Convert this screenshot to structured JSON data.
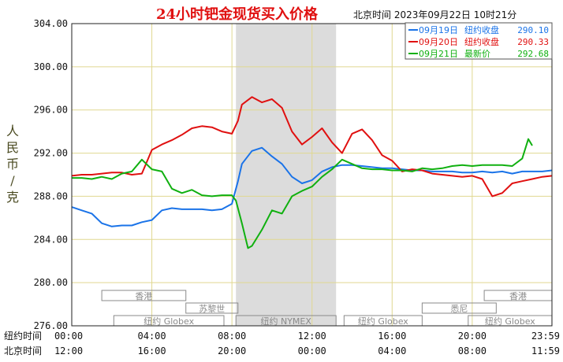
{
  "chart_data": {
    "type": "line",
    "title": "24小时钯金现货买入价格",
    "subtitle": "北京时间 2023年09月22日 10时21分",
    "ylabel": "人民币/克",
    "ylim": [
      276,
      304
    ],
    "yticks": [
      "276.00",
      "280.00",
      "284.00",
      "288.00",
      "292.00",
      "296.00",
      "300.00",
      "304.00"
    ],
    "x_hours": [
      0,
      4,
      8,
      12,
      16,
      20,
      23.983
    ],
    "x_row_ny_label": "纽约时间",
    "x_row_ny_ticks": [
      "00:00",
      "04:00",
      "08:00",
      "12:00",
      "16:00",
      "20:00",
      "23:59"
    ],
    "x_row_bj_label": "北京时间",
    "x_row_bj_ticks": [
      "12:00",
      "16:00",
      "20:00",
      "00:00",
      "04:00",
      "08:00",
      "11:59"
    ],
    "highlight_band_hours": [
      8.2,
      13.2
    ],
    "grid": true,
    "legend_position": "top-right",
    "series": [
      {
        "name": "09月19日 纽约收盘 290.10",
        "legend_date": "09月19日",
        "legend_text": "纽约收盘",
        "legend_value": "290.10",
        "color": "#1a73e8",
        "points": [
          [
            0,
            287.0
          ],
          [
            0.5,
            286.7
          ],
          [
            1.0,
            286.4
          ],
          [
            1.5,
            285.5
          ],
          [
            2.0,
            285.2
          ],
          [
            2.5,
            285.3
          ],
          [
            3.0,
            285.3
          ],
          [
            3.5,
            285.6
          ],
          [
            4.0,
            285.8
          ],
          [
            4.5,
            286.7
          ],
          [
            5.0,
            286.9
          ],
          [
            5.5,
            286.8
          ],
          [
            6.0,
            286.8
          ],
          [
            6.5,
            286.8
          ],
          [
            7.0,
            286.7
          ],
          [
            7.5,
            286.8
          ],
          [
            8.0,
            287.3
          ],
          [
            8.3,
            289.4
          ],
          [
            8.5,
            291.0
          ],
          [
            9.0,
            292.2
          ],
          [
            9.5,
            292.5
          ],
          [
            10.0,
            291.7
          ],
          [
            10.5,
            291.0
          ],
          [
            11.0,
            289.8
          ],
          [
            11.5,
            289.2
          ],
          [
            12.0,
            289.5
          ],
          [
            12.5,
            290.3
          ],
          [
            13.0,
            290.7
          ],
          [
            13.5,
            290.9
          ],
          [
            14.0,
            290.9
          ],
          [
            14.5,
            290.8
          ],
          [
            15.0,
            290.7
          ],
          [
            15.5,
            290.6
          ],
          [
            16.0,
            290.6
          ],
          [
            16.5,
            290.5
          ],
          [
            17.0,
            290.4
          ],
          [
            17.5,
            290.4
          ],
          [
            18.0,
            290.3
          ],
          [
            18.5,
            290.3
          ],
          [
            19.0,
            290.3
          ],
          [
            19.5,
            290.2
          ],
          [
            20.0,
            290.2
          ],
          [
            20.5,
            290.3
          ],
          [
            21.0,
            290.2
          ],
          [
            21.5,
            290.3
          ],
          [
            22.0,
            290.1
          ],
          [
            22.5,
            290.3
          ],
          [
            23.0,
            290.3
          ],
          [
            23.5,
            290.3
          ],
          [
            23.98,
            290.4
          ]
        ]
      },
      {
        "name": "09月20日 纽约收盘 290.33",
        "legend_date": "09月20日",
        "legend_text": "纽约收盘",
        "legend_value": "290.33",
        "color": "#e01010",
        "points": [
          [
            0,
            289.9
          ],
          [
            0.5,
            290.0
          ],
          [
            1.0,
            290.0
          ],
          [
            1.5,
            290.1
          ],
          [
            2.0,
            290.2
          ],
          [
            2.5,
            290.2
          ],
          [
            3.0,
            290.0
          ],
          [
            3.5,
            290.1
          ],
          [
            4.0,
            292.3
          ],
          [
            4.5,
            292.8
          ],
          [
            5.0,
            293.2
          ],
          [
            5.5,
            293.7
          ],
          [
            6.0,
            294.3
          ],
          [
            6.5,
            294.5
          ],
          [
            7.0,
            294.4
          ],
          [
            7.5,
            294.0
          ],
          [
            8.0,
            293.8
          ],
          [
            8.3,
            295.0
          ],
          [
            8.5,
            296.5
          ],
          [
            9.0,
            297.2
          ],
          [
            9.5,
            296.7
          ],
          [
            10.0,
            297.0
          ],
          [
            10.5,
            296.2
          ],
          [
            11.0,
            294.0
          ],
          [
            11.5,
            292.8
          ],
          [
            12.0,
            293.5
          ],
          [
            12.5,
            294.3
          ],
          [
            13.0,
            293.0
          ],
          [
            13.5,
            292.0
          ],
          [
            14.0,
            293.8
          ],
          [
            14.5,
            294.2
          ],
          [
            15.0,
            293.2
          ],
          [
            15.5,
            291.8
          ],
          [
            16.0,
            291.3
          ],
          [
            16.5,
            290.3
          ],
          [
            17.0,
            290.5
          ],
          [
            17.5,
            290.4
          ],
          [
            18.0,
            290.1
          ],
          [
            18.5,
            290.0
          ],
          [
            19.0,
            289.9
          ],
          [
            19.5,
            289.8
          ],
          [
            20.0,
            289.9
          ],
          [
            20.5,
            289.6
          ],
          [
            21.0,
            288.0
          ],
          [
            21.5,
            288.3
          ],
          [
            22.0,
            289.2
          ],
          [
            22.5,
            289.4
          ],
          [
            23.0,
            289.6
          ],
          [
            23.5,
            289.8
          ],
          [
            23.98,
            289.9
          ]
        ]
      },
      {
        "name": "09月21日 最新价 292.68",
        "legend_date": "09月21日",
        "legend_text": "最新价",
        "legend_value": "292.68",
        "color": "#10b010",
        "points": [
          [
            0,
            289.7
          ],
          [
            0.5,
            289.7
          ],
          [
            1.0,
            289.6
          ],
          [
            1.5,
            289.8
          ],
          [
            2.0,
            289.6
          ],
          [
            2.5,
            290.1
          ],
          [
            3.0,
            290.3
          ],
          [
            3.5,
            291.4
          ],
          [
            4.0,
            290.5
          ],
          [
            4.5,
            290.3
          ],
          [
            5.0,
            288.7
          ],
          [
            5.5,
            288.3
          ],
          [
            6.0,
            288.6
          ],
          [
            6.5,
            288.1
          ],
          [
            7.0,
            288.0
          ],
          [
            7.5,
            288.1
          ],
          [
            8.0,
            288.1
          ],
          [
            8.2,
            287.6
          ],
          [
            8.5,
            285.5
          ],
          [
            8.8,
            283.2
          ],
          [
            9.0,
            283.4
          ],
          [
            9.5,
            284.9
          ],
          [
            10.0,
            286.7
          ],
          [
            10.5,
            286.4
          ],
          [
            11.0,
            288.0
          ],
          [
            11.5,
            288.5
          ],
          [
            12.0,
            288.9
          ],
          [
            12.5,
            289.8
          ],
          [
            13.0,
            290.5
          ],
          [
            13.5,
            291.4
          ],
          [
            14.0,
            291.0
          ],
          [
            14.5,
            290.6
          ],
          [
            15.0,
            290.5
          ],
          [
            15.5,
            290.5
          ],
          [
            16.0,
            290.4
          ],
          [
            16.5,
            290.4
          ],
          [
            17.0,
            290.3
          ],
          [
            17.5,
            290.6
          ],
          [
            18.0,
            290.5
          ],
          [
            18.5,
            290.6
          ],
          [
            19.0,
            290.8
          ],
          [
            19.5,
            290.9
          ],
          [
            20.0,
            290.8
          ],
          [
            20.5,
            290.9
          ],
          [
            21.0,
            290.9
          ],
          [
            21.5,
            290.9
          ],
          [
            22.0,
            290.8
          ],
          [
            22.5,
            291.5
          ],
          [
            22.8,
            293.3
          ],
          [
            23.0,
            292.7
          ]
        ]
      }
    ]
  },
  "sessions": {
    "top_row": [
      {
        "label": "香港",
        "hours": [
          1.5,
          5.7
        ]
      },
      {
        "label": "香港",
        "hours": [
          20.6,
          23.98
        ]
      }
    ],
    "mid_row": [
      {
        "label": "苏黎世",
        "hours": [
          5.7,
          8.3
        ]
      },
      {
        "label": "悉尼",
        "hours": [
          17.5,
          21.2
        ]
      }
    ],
    "low_row": [
      {
        "label": "纽约 Globex",
        "hours": [
          2.1,
          7.6
        ]
      },
      {
        "label": "纽约 NYMEX",
        "hours": [
          8.2,
          13.2
        ]
      },
      {
        "label": "纽约 Globex",
        "hours": [
          13.6,
          17.5
        ]
      },
      {
        "label": "纽约 Globex",
        "hours": [
          19.8,
          23.98
        ]
      }
    ]
  }
}
